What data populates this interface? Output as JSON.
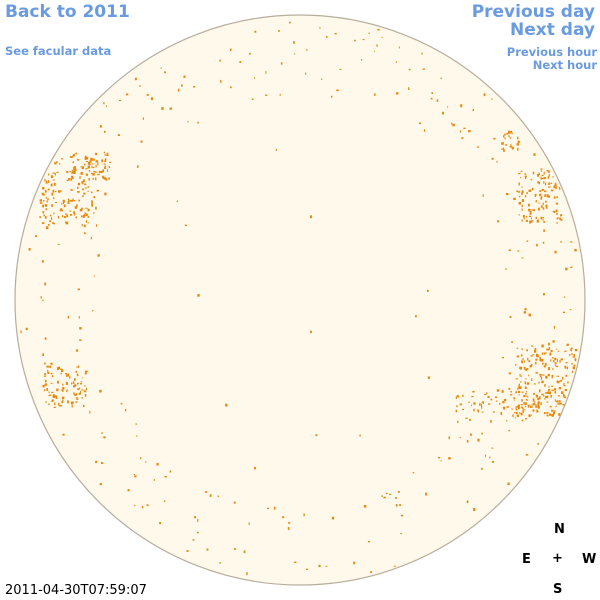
{
  "nav": {
    "back_label": "Back to 2011",
    "facular_label": "See facular data",
    "previous_day_label": "Previous day",
    "next_day_label": "Next day",
    "previous_hour_label": "Previous hour",
    "next_hour_label": "Next hour"
  },
  "compass": {
    "north": "N",
    "east": "E",
    "center": "+",
    "west": "W",
    "south": "S"
  },
  "timestamp": "2011-04-30T07:59:07",
  "colors": {
    "link": "#6a9be0",
    "disk_fill": "#fff9ec",
    "disk_outline": "#b8ad9c",
    "faculae": "#e8890f"
  }
}
